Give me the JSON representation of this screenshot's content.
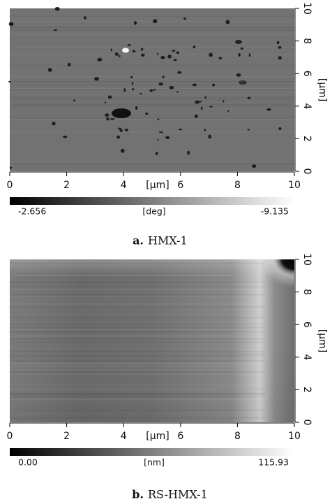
{
  "panels": [
    {
      "label": "a.",
      "title": "HMX-1",
      "x_ticks": [
        0,
        2,
        4,
        6,
        8,
        10
      ],
      "x_unit": "[µm]",
      "y_ticks": [
        0,
        2,
        4,
        6,
        8,
        10
      ],
      "y_unit": "[µm]",
      "colorbar": {
        "min": "-2.656",
        "unit": "[deg]",
        "max": "-9.135"
      }
    },
    {
      "label": "b.",
      "title": "RS-HMX-1",
      "x_ticks": [
        0,
        2,
        4,
        6,
        8,
        10
      ],
      "x_unit": "[µm]",
      "y_ticks": [
        0,
        2,
        4,
        6,
        8,
        10
      ],
      "y_unit": "[µm]",
      "colorbar": {
        "min": "0.00",
        "unit": "[nm]",
        "max": "115.93"
      }
    }
  ]
}
